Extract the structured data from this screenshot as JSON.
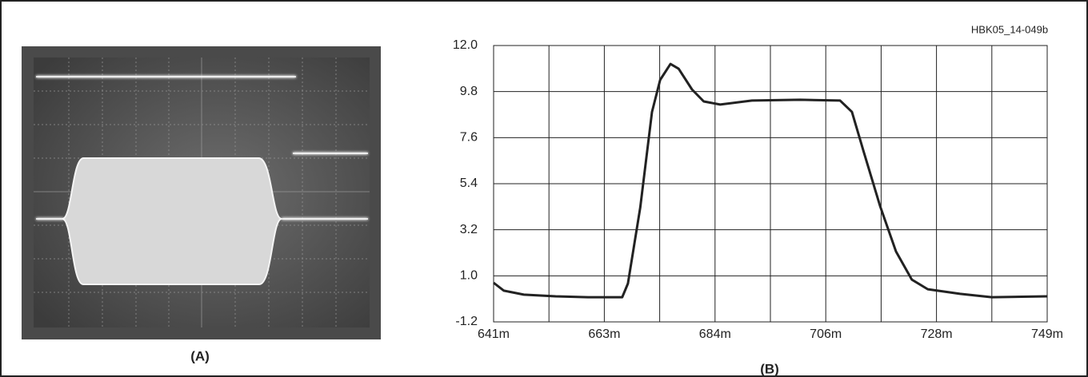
{
  "figure_id": "HBK05_14-049b",
  "photo_label": "(A)",
  "chart_data": {
    "type": "line",
    "title": "(B)",
    "color": "#222222",
    "grid": true,
    "x": [
      641,
      643.0,
      646.9,
      653.1,
      659.4,
      666.1,
      667.2,
      669.6,
      671.9,
      673.5,
      675.5,
      677.1,
      679.7,
      682.0,
      685.2,
      691.4,
      700.8,
      708.6,
      710.9,
      713.2,
      716.4,
      719.5,
      722.6,
      725.7,
      732.0,
      738.2,
      749
    ],
    "values": [
      0.67,
      0.29,
      0.1,
      0.02,
      -0.02,
      -0.02,
      0.63,
      4.26,
      8.83,
      10.36,
      11.12,
      10.89,
      9.9,
      9.33,
      9.18,
      9.37,
      9.41,
      9.37,
      8.83,
      6.93,
      4.33,
      2.16,
      0.82,
      0.36,
      0.14,
      -0.02,
      0.02
    ],
    "xlim": [
      641,
      749
    ],
    "xticks": [
      {
        "value": 641,
        "label": "641m"
      },
      {
        "value": 662.6,
        "label": "663m"
      },
      {
        "value": 684.2,
        "label": "684m"
      },
      {
        "value": 705.8,
        "label": "706m"
      },
      {
        "value": 727.4,
        "label": "728m"
      },
      {
        "value": 749,
        "label": "749m"
      }
    ],
    "ylim": [
      -1.2,
      12.0
    ],
    "yticks": [
      -1.2,
      {
        "value": 1.0,
        "label": "1.0"
      },
      3.2,
      5.4,
      7.6,
      9.8,
      {
        "value": 12.0,
        "label": "12.0"
      }
    ]
  }
}
